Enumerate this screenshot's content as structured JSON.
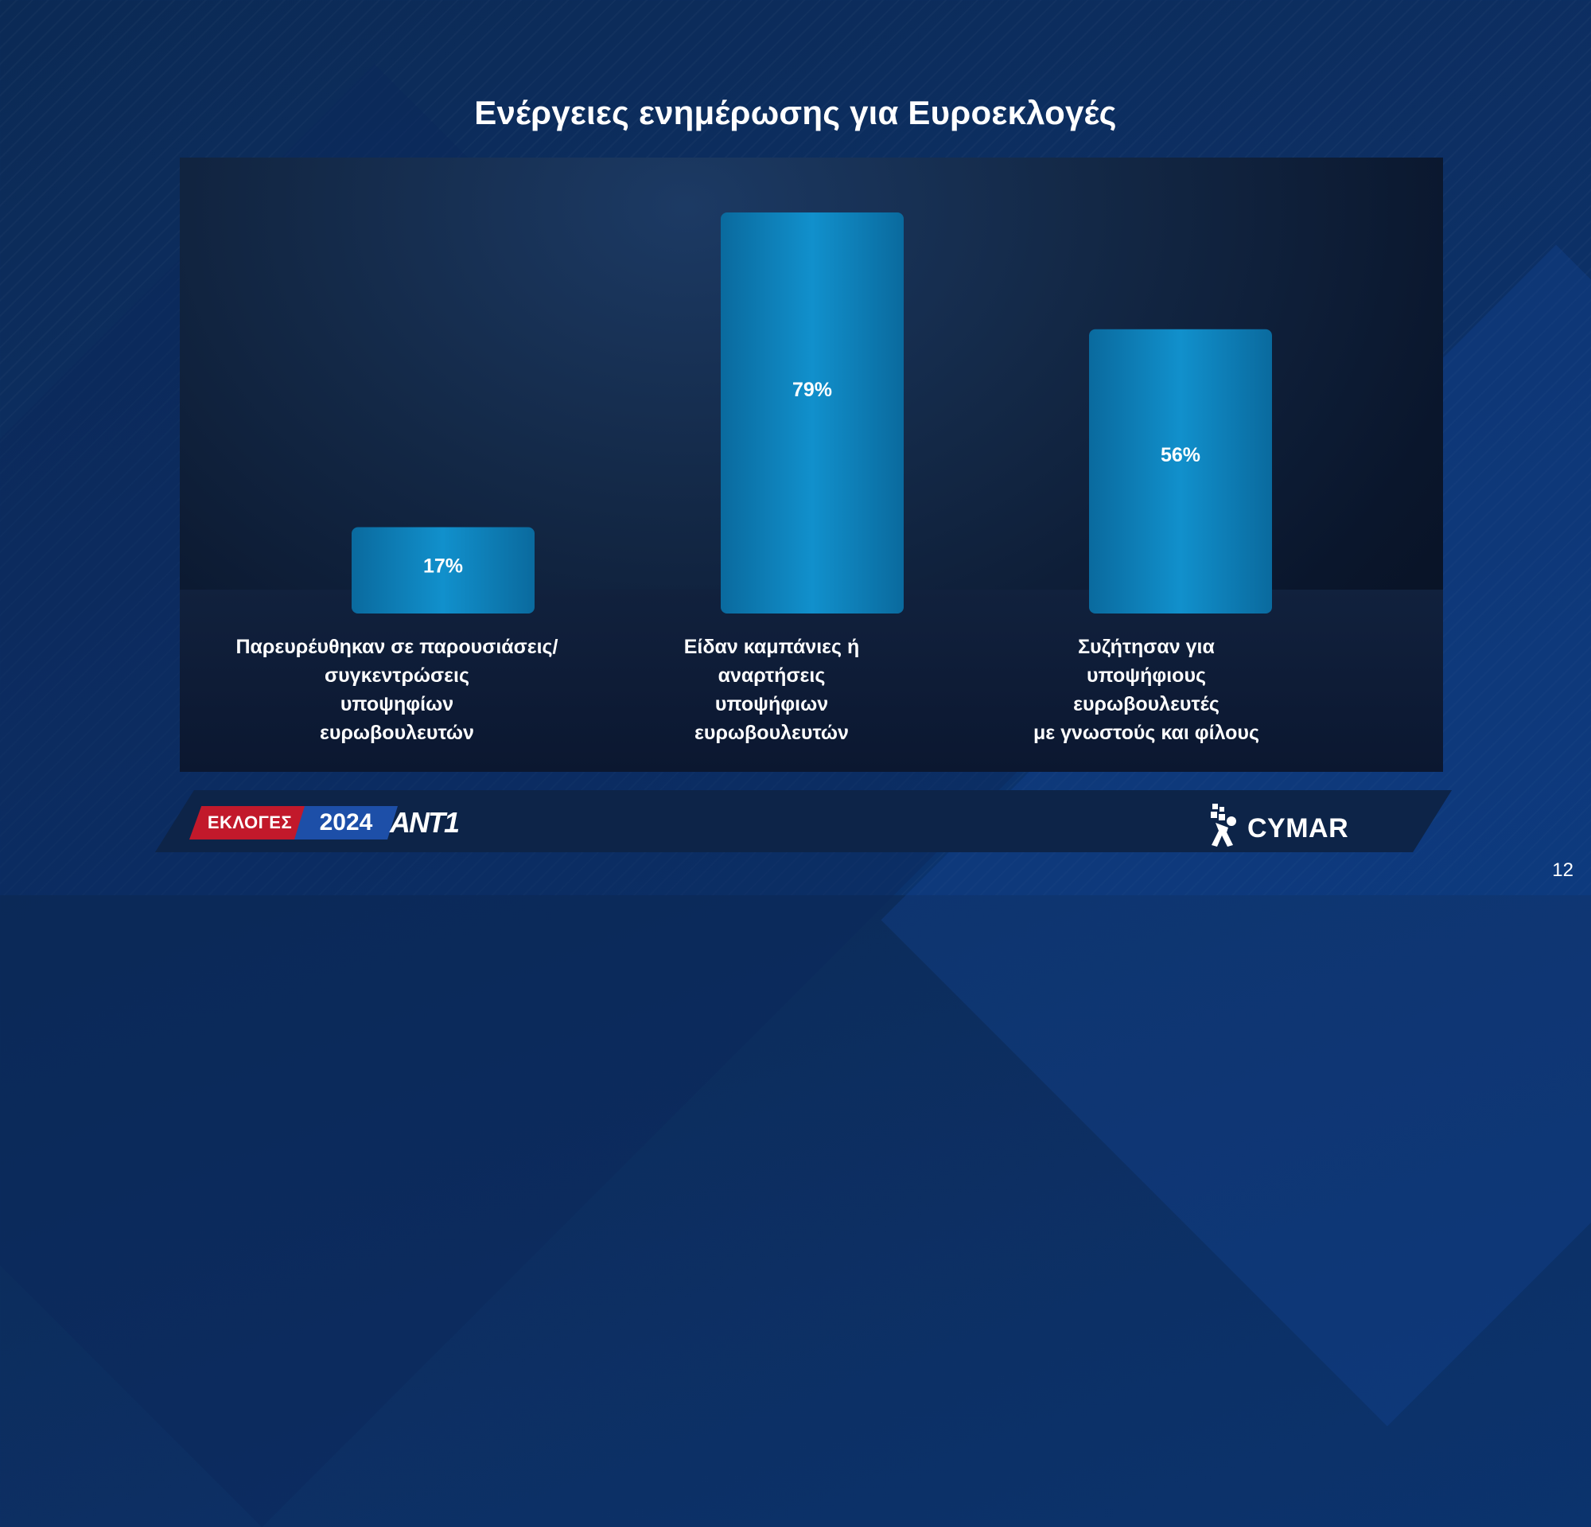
{
  "title": "Ενέργειες ενημέρωσης για Ευροεκλογές",
  "chart_data": {
    "type": "bar",
    "categories": [
      "Παρευρέυθηκαν σε παρουσιάσεις/ συγκεντρώσεις υποψηφίων ευρωβουλευτών",
      "Είδαν καμπάνιες ή αναρτήσεις υποψήφιων ευρωβουλευτών",
      "Συζήτησαν για υποψήφιους ευρωβουλευτές με γνωστούς και φίλους"
    ],
    "category_lines": [
      [
        "Παρευρέυθηκαν σε παρουσιάσεις/",
        "συγκεντρώσεις",
        "υποψηφίων",
        "ευρωβουλευτών"
      ],
      [
        "Είδαν καμπάνιες ή",
        "αναρτήσεις",
        "υποψήφιων",
        "ευρωβουλευτών"
      ],
      [
        "Συζήτησαν για",
        "υποψήφιους",
        "ευρωβουλευτές",
        "με γνωστούς και φίλους"
      ]
    ],
    "values": [
      17,
      79,
      56
    ],
    "data_labels": [
      "17%",
      "79%",
      "56%"
    ],
    "ylim": [
      0,
      100
    ],
    "bar_color": "#0e7fb8",
    "grid": false,
    "legend": "none"
  },
  "footer": {
    "logo_election": "ΕΚΛΟΓΕΣ",
    "logo_year": "2024",
    "logo_channel": "ΑΝΤ1",
    "logo_pollster": "CYMAR"
  },
  "page_number": "12"
}
